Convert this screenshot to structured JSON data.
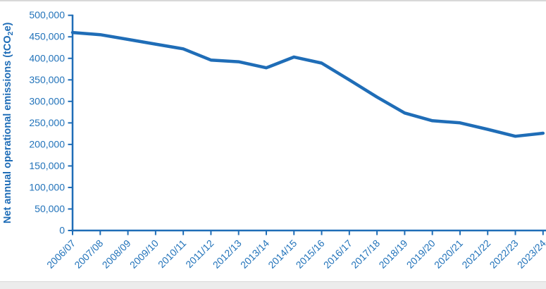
{
  "page": {
    "background": "#ffffff",
    "top_edge_color": "#d8d8d8",
    "bottom_band_color": "#ececec",
    "bottom_band_border_color": "#d9d9d9"
  },
  "chart_data": {
    "type": "line",
    "title": "",
    "xlabel": "",
    "ylabel": "Net annual operational emissions (tCO2e)",
    "ylabel_parts": {
      "prefix": "Net annual operational emissions (tCO",
      "subscript": "2",
      "suffix": "e)"
    },
    "categories": [
      "2006/07",
      "2007/08",
      "2008/09",
      "2009/10",
      "2010/11",
      "2011/12",
      "2012/13",
      "2013/14",
      "2014/15",
      "2015/16",
      "2016/17",
      "2017/18",
      "2018/19",
      "2019/20",
      "2020/21",
      "2021/22",
      "2022/23",
      "2023/24"
    ],
    "values": [
      460000,
      455000,
      444000,
      433000,
      422000,
      396000,
      392000,
      378000,
      403000,
      389000,
      350000,
      310000,
      273000,
      255000,
      250000,
      235000,
      219000,
      226000
    ],
    "ylim": [
      0,
      500000
    ],
    "ytick_step": 50000,
    "ytick_labels": [
      "0",
      "50,000",
      "100,000",
      "150,000",
      "200,000",
      "250,000",
      "300,000",
      "350,000",
      "400,000",
      "450,000",
      "500,000"
    ],
    "grid": false,
    "legend": "none",
    "colors": {
      "line": "#1f6db7",
      "axis": "#1f6db7",
      "tick_label": "#2273ba",
      "axis_title": "#1f6db7"
    }
  }
}
